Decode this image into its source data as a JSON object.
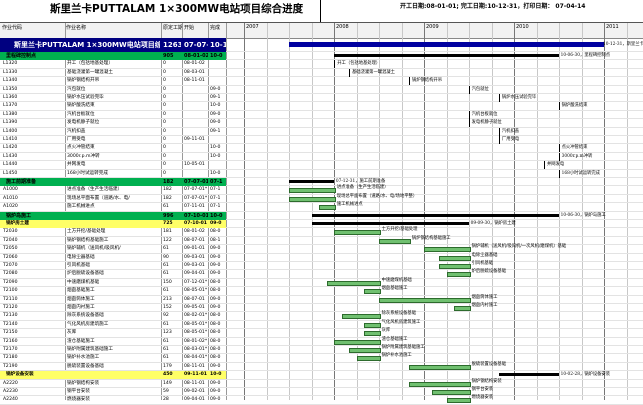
{
  "header": {
    "title": "斯里兰卡PUTTALAM 1×300MW电站项目综合进度",
    "dates": "开工日期:08-01-01;  完工日期:10-12-31，打印日期： 07-04-14"
  },
  "columns": {
    "id": "作业代码",
    "name": "作业名称",
    "duration": "原定工期",
    "start": "开始",
    "finish": "完成"
  },
  "years": [
    "2007",
    "2008",
    "2009",
    "2010",
    "2011"
  ],
  "rows": [
    {
      "kind": "project",
      "id": "斯里兰卡PUTTALAM 1×300MW电站项目综合进度",
      "name": "",
      "dur": "1263",
      "start": "07-07-01",
      "finish": "10-1",
      "label": "10-12-31，斯里兰卡PUTT"
    },
    {
      "kind": "section",
      "id": "里程碑控制点",
      "name": "",
      "dur": "905",
      "start": "08-01-02",
      "finish": "10-0",
      "label": "10-06-30，里程碑控制点"
    },
    {
      "kind": "task",
      "id": "L1320",
      "name": "开工（包括地基处理）",
      "dur": "0",
      "start": "08-01-02",
      "finish": "",
      "label": "开工（包括地基处理）"
    },
    {
      "kind": "task",
      "id": "L1330",
      "name": "基础浇灌第一罐混凝土",
      "dur": "0",
      "start": "08-03-01",
      "finish": "",
      "label": "基础浇灌第一罐混凝土"
    },
    {
      "kind": "task",
      "id": "L1340",
      "name": "锅炉钢结构开吊",
      "dur": "0",
      "start": "08-11-01",
      "finish": "",
      "label": "锅炉钢结构开吊"
    },
    {
      "kind": "task",
      "id": "L1350",
      "name": "汽包就位",
      "dur": "0",
      "start": "",
      "finish": "09-0",
      "label": "汽包就位"
    },
    {
      "kind": "task",
      "id": "L1360",
      "name": "锅炉水压试验完毕",
      "dur": "0",
      "start": "",
      "finish": "09-1",
      "label": "锅炉水压试验完毕"
    },
    {
      "kind": "task",
      "id": "L1370",
      "name": "锅炉酸洗结束",
      "dur": "0",
      "start": "",
      "finish": "10-0",
      "label": "锅炉酸洗结束"
    },
    {
      "kind": "task",
      "id": "L1380",
      "name": "汽机台板就位",
      "dur": "0",
      "start": "",
      "finish": "09-0",
      "label": "汽机台板就位"
    },
    {
      "kind": "task",
      "id": "L1390",
      "name": "发电机静子就位",
      "dur": "0",
      "start": "",
      "finish": "09-0",
      "label": "发电机静子就位"
    },
    {
      "kind": "task",
      "id": "L1400",
      "name": "汽机扣盖",
      "dur": "0",
      "start": "",
      "finish": "09-1",
      "label": "汽机扣盖"
    },
    {
      "kind": "task",
      "id": "L1410",
      "name": "厂用受电",
      "dur": "0",
      "start": "09-11-01",
      "finish": "",
      "label": "厂用受电"
    },
    {
      "kind": "task",
      "id": "L1420",
      "name": "点火冲管结束",
      "dur": "0",
      "start": "",
      "finish": "10-0",
      "label": "点火冲管结束"
    },
    {
      "kind": "task",
      "id": "L1430",
      "name": "3000r.p.m冲转",
      "dur": "0",
      "start": "",
      "finish": "10-0",
      "label": "3000r.p.m冲转"
    },
    {
      "kind": "task",
      "id": "L1440",
      "name": "并网发电",
      "dur": "0",
      "start": "10-05-01",
      "finish": "",
      "label": "并网发电"
    },
    {
      "kind": "task",
      "id": "L1450",
      "name": "168小时试运转完成",
      "dur": "0",
      "start": "",
      "finish": "10-0",
      "label": "168小时试运转完成"
    },
    {
      "kind": "section",
      "id": "施工前期准备",
      "name": "",
      "dur": "182",
      "start": "07-07-01",
      "finish": "07-1",
      "label": "07-12-31，施工前期准备"
    },
    {
      "kind": "task",
      "id": "A1000",
      "name": "进点准备（生产生活临建）",
      "dur": "182",
      "start": "07-07-01*",
      "finish": "07-1",
      "label": "进点准备（生产生活临建）"
    },
    {
      "kind": "task",
      "id": "A1010",
      "name": "现场总平面布置（道路/水、电/",
      "dur": "182",
      "start": "07-07-01*",
      "finish": "07-1",
      "label": "现场总平面布置（道路/水、电/场地平整）"
    },
    {
      "kind": "task",
      "id": "A1020",
      "name": "施工机械进点",
      "dur": "61",
      "start": "07-11-01",
      "finish": "07-1",
      "label": "施工机械进点"
    },
    {
      "kind": "section",
      "id": "锅炉岛施工",
      "name": "",
      "dur": "996",
      "start": "07-10-01",
      "finish": "10-0",
      "label": "10-06-30，锅炉岛施工"
    },
    {
      "kind": "subsection",
      "id": "锅炉房土建",
      "name": "",
      "dur": "725",
      "start": "07-10-01",
      "finish": "09-0",
      "label": "09-09-30，锅炉房土建"
    },
    {
      "kind": "task",
      "id": "T2030",
      "name": "土方开挖/基础处理",
      "dur": "181",
      "start": "08-01-02",
      "finish": "08-0",
      "label": "土方开挖/基础处理"
    },
    {
      "kind": "task",
      "id": "T2040",
      "name": "锅炉钢结构基础施工",
      "dur": "122",
      "start": "08-07-01",
      "finish": "08-1",
      "label": "锅炉钢结构基础施工"
    },
    {
      "kind": "task",
      "id": "T2050",
      "name": "锅炉辅机（送风机/吸风机/",
      "dur": "61",
      "start": "09-01-01",
      "finish": "09-0",
      "label": "锅炉辅机（送风机/吸风机/一次风机/磨煤机）基础"
    },
    {
      "kind": "task",
      "id": "T2060",
      "name": "电除尘器基础",
      "dur": "90",
      "start": "09-03-01",
      "finish": "09-0",
      "label": "电除尘器基础"
    },
    {
      "kind": "task",
      "id": "T2070",
      "name": "引风机基础",
      "dur": "61",
      "start": "09-03-01",
      "finish": "09-0",
      "label": "引风机基础"
    },
    {
      "kind": "task",
      "id": "T2080",
      "name": "炉后脱硫设备基础",
      "dur": "61",
      "start": "09-04-01",
      "finish": "09-0",
      "label": "炉后脱硫设备基础"
    },
    {
      "kind": "task",
      "id": "T2090",
      "name": "中速磨煤机基础",
      "dur": "150",
      "start": "07-12-01*",
      "finish": "08-0",
      "label": "中速磨煤机基础"
    },
    {
      "kind": "task",
      "id": "T2100",
      "name": "烟囱基础施工",
      "dur": "61",
      "start": "08-05-01*",
      "finish": "08-0",
      "label": "烟囱基础施工"
    },
    {
      "kind": "task",
      "id": "T2110",
      "name": "烟囱筒体施工",
      "dur": "213",
      "start": "08-07-01",
      "finish": "09-0",
      "label": "烟囱筒体施工"
    },
    {
      "kind": "task",
      "id": "T2120",
      "name": "烟囱内衬施工",
      "dur": "152",
      "start": "09-05-01",
      "finish": "09-0",
      "label": "烟囱内衬施工"
    },
    {
      "kind": "task",
      "id": "T2130",
      "name": "除灰系统设备基础",
      "dur": "92",
      "start": "08-02-01*",
      "finish": "08-0",
      "label": "除灰系统设备基础"
    },
    {
      "kind": "task",
      "id": "T2140",
      "name": "气化风机房建筑施工",
      "dur": "61",
      "start": "08-05-01*",
      "finish": "08-0",
      "label": "气化风机房建筑施工"
    },
    {
      "kind": "task",
      "id": "T2150",
      "name": "灰库",
      "dur": "123",
      "start": "08-05-01*",
      "finish": "08-0",
      "label": "灰库"
    },
    {
      "kind": "task",
      "id": "T2160",
      "name": "渣仓基础施工",
      "dur": "61",
      "start": "08-01-02*",
      "finish": "08-0",
      "label": "渣仓基础施工"
    },
    {
      "kind": "task",
      "id": "T2170",
      "name": "锅炉附属建筑基础施工",
      "dur": "61",
      "start": "08-03-01*",
      "finish": "08-0",
      "label": "锅炉附属建筑基础施工"
    },
    {
      "kind": "task",
      "id": "T2180",
      "name": "锅炉补水池施工",
      "dur": "61",
      "start": "08-04-01*",
      "finish": "08-0",
      "label": "锅炉补水池施工"
    },
    {
      "kind": "task",
      "id": "T2190",
      "name": "脱硫装置设备基础",
      "dur": "179",
      "start": "08-11-01",
      "finish": "09-0",
      "label": "脱硫装置设备基础"
    },
    {
      "kind": "subsection",
      "id": "锅炉设备安装",
      "name": "",
      "dur": "450",
      "start": "09-11-01",
      "finish": "10-0",
      "label": "10-02-28，锅炉设备安装"
    },
    {
      "kind": "task",
      "id": "A2220",
      "name": "锅炉钢结构安装",
      "dur": "149",
      "start": "08-11-01",
      "finish": "09-0",
      "label": "锅炉钢结构安装"
    },
    {
      "kind": "task",
      "id": "A2230",
      "name": "钢平台安装",
      "dur": "59",
      "start": "09-02-01",
      "finish": "09-0",
      "label": "钢平台安装"
    },
    {
      "kind": "task",
      "id": "A2240",
      "name": "燃烧器安装",
      "dur": "28",
      "start": "09-04-01",
      "finish": "09-0",
      "label": "燃烧器安装"
    }
  ]
}
